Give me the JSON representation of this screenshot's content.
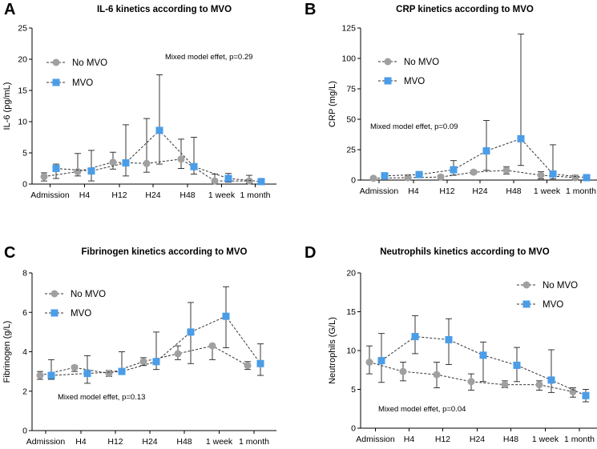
{
  "colors": {
    "no_mvo": "#a0a0a0",
    "mvo": "#4a9de8",
    "axis": "#000000",
    "error": "#222222"
  },
  "chart_data": [
    {
      "type": "line",
      "letter": "A",
      "title": "IL-6 kinetics according to MVO",
      "ylabel": "IL-6 (pg/mL)",
      "xlabel": "",
      "categories": [
        "Admission",
        "H4",
        "H12",
        "H24",
        "H48",
        "1 week",
        "1 month"
      ],
      "ylim": [
        0,
        25
      ],
      "yticks": [
        0,
        5,
        10,
        15,
        20,
        25
      ],
      "legend": "top-left",
      "annotation": "Mixed model effet, p=0.29",
      "series": [
        {
          "name": "No MVO",
          "values": [
            1.2,
            2.0,
            3.5,
            3.3,
            4.0,
            0.5,
            0.5
          ],
          "err_low": [
            0.5,
            1.3,
            2.4,
            1.9,
            2.5,
            0.2,
            0.1
          ],
          "err_high": [
            1.8,
            4.9,
            5.1,
            10.5,
            7.2,
            1.6,
            1.4
          ]
        },
        {
          "name": "MVO",
          "values": [
            2.5,
            2.1,
            3.4,
            8.6,
            2.8,
            0.9,
            0.4
          ],
          "err_low": [
            0.9,
            0.5,
            1.3,
            3.2,
            1.6,
            0.3,
            0.0
          ],
          "err_high": [
            3.2,
            5.4,
            9.5,
            17.5,
            7.5,
            1.7,
            0.9
          ]
        }
      ]
    },
    {
      "type": "line",
      "letter": "B",
      "title": "CRP kinetics according to MVO",
      "ylabel": "CRP (mg/L)",
      "xlabel": "",
      "categories": [
        "Admission",
        "H4",
        "H12",
        "H24",
        "H48",
        "1 week",
        "1 month"
      ],
      "ylim": [
        0,
        125
      ],
      "yticks": [
        0,
        25,
        50,
        75,
        100,
        125
      ],
      "legend": "top-left",
      "annotation": "Mixed model effet, p=0.09",
      "series": [
        {
          "name": "No MVO",
          "values": [
            1.5,
            2.0,
            2.5,
            6.5,
            8.0,
            4.0,
            2.0
          ],
          "err_low": [
            0.5,
            1.0,
            1.5,
            5.0,
            5.0,
            1.0,
            0.5
          ],
          "err_high": [
            2.5,
            3.0,
            4.0,
            8.0,
            11.0,
            7.0,
            4.0
          ]
        },
        {
          "name": "MVO",
          "values": [
            3.5,
            4.5,
            8.5,
            24.0,
            34.0,
            5.0,
            2.0
          ],
          "err_low": [
            1.0,
            2.0,
            4.0,
            8.0,
            12.0,
            1.0,
            0.5
          ],
          "err_high": [
            6.0,
            7.0,
            16.0,
            49.0,
            120.0,
            29.0,
            4.0
          ]
        }
      ]
    },
    {
      "type": "line",
      "letter": "C",
      "title": "Fibrinogen kinetics according to MVO",
      "ylabel": "Fibrinogen (g/L)",
      "xlabel": "",
      "categories": [
        "Admission",
        "H4",
        "H12",
        "H24",
        "H48",
        "1 week",
        "1 month"
      ],
      "ylim": [
        0,
        8
      ],
      "yticks": [
        0,
        2,
        4,
        6,
        8
      ],
      "legend": "top-left",
      "annotation": "Mixed model effet, p=0.13",
      "series": [
        {
          "name": "No MVO",
          "values": [
            2.8,
            3.2,
            2.9,
            3.5,
            3.9,
            4.3,
            3.3
          ],
          "err_low": [
            2.6,
            3.0,
            2.75,
            3.3,
            3.6,
            3.6,
            3.1
          ],
          "err_high": [
            3.0,
            3.3,
            3.05,
            3.7,
            4.3,
            4.3,
            3.5
          ]
        },
        {
          "name": "MVO",
          "values": [
            2.8,
            2.9,
            3.0,
            3.5,
            5.0,
            5.8,
            3.4
          ],
          "err_low": [
            2.6,
            2.4,
            3.0,
            3.1,
            3.4,
            4.2,
            2.8
          ],
          "err_high": [
            3.6,
            3.8,
            4.0,
            5.0,
            6.5,
            7.3,
            4.4
          ]
        }
      ]
    },
    {
      "type": "line",
      "letter": "D",
      "title": "Neutrophils kinetics according to MVO",
      "ylabel": "Neutrophils (G/L)",
      "xlabel": "",
      "categories": [
        "Admission",
        "H4",
        "H12",
        "H24",
        "H48",
        "1 week",
        "1 month"
      ],
      "ylim": [
        0,
        20
      ],
      "yticks": [
        0,
        5,
        10,
        15,
        20
      ],
      "legend": "top-right",
      "annotation": "Mixed model effet, p=0.04",
      "series": [
        {
          "name": "No MVO",
          "values": [
            8.5,
            7.3,
            6.9,
            6.0,
            5.6,
            5.6,
            4.7
          ],
          "err_low": [
            7.0,
            6.1,
            5.2,
            4.9,
            5.2,
            4.9,
            4.0
          ],
          "err_high": [
            10.6,
            8.5,
            8.5,
            7.0,
            6.1,
            6.1,
            5.2
          ]
        },
        {
          "name": "MVO",
          "values": [
            8.7,
            11.8,
            11.4,
            9.4,
            8.1,
            6.2,
            4.2
          ],
          "err_low": [
            5.9,
            9.6,
            8.2,
            6.0,
            6.0,
            4.6,
            3.4
          ],
          "err_high": [
            12.2,
            14.5,
            14.1,
            11.1,
            10.4,
            10.1,
            5.0
          ]
        }
      ]
    }
  ]
}
